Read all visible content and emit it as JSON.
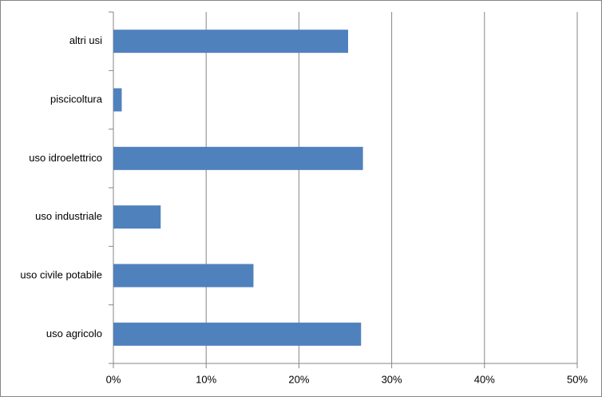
{
  "chart_data": {
    "type": "bar",
    "orientation": "horizontal",
    "categories": [
      "altri usi",
      "piscicoltura",
      "uso idroelettrico",
      "uso industriale",
      "uso civile potabile",
      "uso agricolo"
    ],
    "values": [
      25.3,
      0.9,
      26.9,
      5.1,
      15.1,
      26.7
    ],
    "color": "#4f81bd",
    "xlim": [
      0,
      50
    ],
    "xticks": [
      {
        "value": 0,
        "label": "0%"
      },
      {
        "value": 10,
        "label": "10%"
      },
      {
        "value": 20,
        "label": "20%"
      },
      {
        "value": 30,
        "label": "30%"
      },
      {
        "value": 40,
        "label": "40%"
      },
      {
        "value": 50,
        "label": "50%"
      }
    ],
    "grid": true
  }
}
